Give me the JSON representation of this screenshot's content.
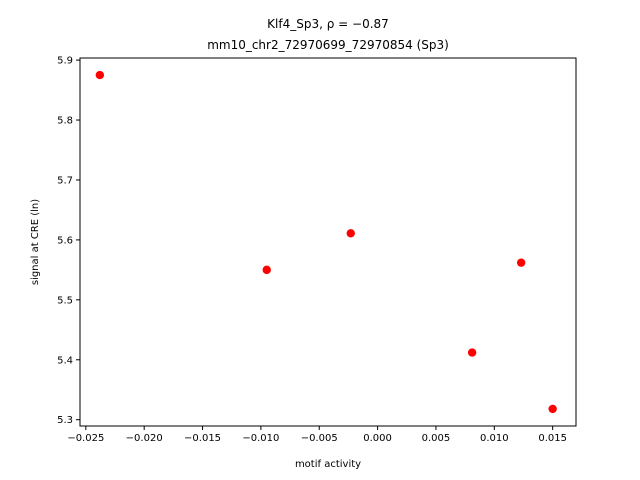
{
  "chart_data": {
    "type": "scatter",
    "title_line1": "Klf4_Sp3, ρ = −0.87",
    "title_line2": "mm10_chr2_72970699_72970854 (Sp3)",
    "xlabel": "motif activity",
    "ylabel": "signal at CRE (ln)",
    "xlim": [
      -0.0255,
      0.017
    ],
    "ylim": [
      5.2895,
      5.9035
    ],
    "xticks": [
      -0.025,
      -0.02,
      -0.015,
      -0.01,
      -0.005,
      0.0,
      0.005,
      0.01,
      0.015
    ],
    "xtick_labels": [
      "−0.025",
      "−0.020",
      "−0.015",
      "−0.010",
      "−0.005",
      "0.000",
      "0.005",
      "0.010",
      "0.015"
    ],
    "yticks": [
      5.3,
      5.4,
      5.5,
      5.6,
      5.7,
      5.8,
      5.9
    ],
    "ytick_labels": [
      "5.3",
      "5.4",
      "5.5",
      "5.6",
      "5.7",
      "5.8",
      "5.9"
    ],
    "grid": false,
    "marker_color": "#ff0000",
    "x": [
      -0.0238,
      -0.0095,
      -0.0023,
      0.0081,
      0.0123,
      0.015
    ],
    "y": [
      5.875,
      5.55,
      5.611,
      5.412,
      5.562,
      5.318
    ]
  }
}
